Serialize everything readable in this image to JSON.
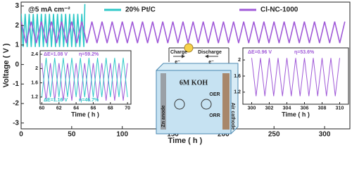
{
  "chart_data": [
    {
      "type": "line",
      "annotation": "@5 mA cm⁻²",
      "xlabel": "Time ( h )",
      "ylabel": "Voltage ( V )",
      "xlim": [
        0,
        325
      ],
      "xticks": [
        0,
        50,
        100,
        150,
        200,
        250,
        300
      ],
      "ylim": [
        -3.3,
        3.2
      ],
      "yticks": [
        -3,
        -2,
        -1,
        0,
        1,
        2,
        3
      ],
      "legend": "top",
      "series": [
        {
          "name": "20% Pt/C",
          "color": "#2ec8c8",
          "x": [
            0,
            2,
            4,
            6,
            8,
            10,
            12,
            14,
            16,
            18,
            20,
            22,
            24,
            26,
            28,
            30,
            32,
            34,
            36,
            38,
            40,
            42,
            44,
            46,
            48,
            50,
            52,
            54,
            56,
            58,
            60,
            62,
            63
          ],
          "values": [
            2.6,
            0.9,
            2.6,
            0.9,
            2.6,
            0.9,
            2.6,
            0.9,
            2.6,
            0.9,
            2.6,
            0.9,
            2.6,
            0.9,
            2.6,
            0.9,
            2.6,
            0.9,
            2.6,
            0.9,
            2.6,
            0.9,
            2.6,
            0.9,
            2.6,
            0.9,
            2.6,
            0.9,
            2.6,
            0.9,
            2.6,
            0.9,
            3.1
          ]
        },
        {
          "name": "Cl-NC-1000",
          "color": "#a05ad8",
          "x": [
            0,
            5,
            10,
            15,
            20,
            25,
            30,
            35,
            40,
            45,
            50,
            55,
            60,
            65,
            70,
            75,
            80,
            85,
            90,
            95,
            100,
            105,
            110,
            115,
            120,
            125,
            130,
            135,
            140,
            145,
            150,
            155,
            160,
            165,
            170,
            175,
            180,
            185,
            190,
            195,
            200,
            205,
            210,
            215,
            220,
            225,
            230,
            235,
            240,
            245,
            250,
            255,
            260,
            265,
            270,
            275,
            280,
            285,
            290,
            295,
            300,
            305,
            310,
            315,
            320
          ],
          "values": [
            2.2,
            1.1,
            2.2,
            1.1,
            2.2,
            1.1,
            2.2,
            1.1,
            2.2,
            1.1,
            2.2,
            1.1,
            2.2,
            1.1,
            2.2,
            1.1,
            2.2,
            1.1,
            2.2,
            1.1,
            2.2,
            1.1,
            2.2,
            1.1,
            2.2,
            1.1,
            2.2,
            1.1,
            2.2,
            1.1,
            2.2,
            1.1,
            2.2,
            1.1,
            2.2,
            1.1,
            2.2,
            1.1,
            2.2,
            1.1,
            2.2,
            1.1,
            2.2,
            1.1,
            2.2,
            1.1,
            2.2,
            1.1,
            2.2,
            1.1,
            2.2,
            1.1,
            2.2,
            1.1,
            2.2,
            1.1,
            2.2,
            1.1,
            2.2,
            1.1,
            2.2,
            1.1,
            2.2,
            1.1,
            2.2
          ]
        }
      ]
    },
    {
      "type": "line",
      "xlabel": "Time ( h )",
      "xlim": [
        59.8,
        70.4
      ],
      "xticks": [
        60,
        62,
        64,
        66,
        68,
        70
      ],
      "ylim": [
        1.0,
        2.5
      ],
      "yticks": [
        1.2,
        1.6,
        2.0,
        2.4
      ],
      "annotations": [
        "ΔE=1.08 V",
        "η=59.2%",
        "ΔE=1.16 V",
        "η=46.7%"
      ],
      "series": [
        {
          "color": "#a05ad8",
          "x": [
            60,
            60.5,
            61,
            61.5,
            62,
            62.5,
            63,
            63.5,
            64,
            64.5,
            65,
            65.5,
            66,
            66.5,
            67,
            67.5,
            68,
            68.5,
            69,
            69.5,
            70
          ],
          "values": [
            2.15,
            1.1,
            2.15,
            1.1,
            2.15,
            1.1,
            2.15,
            1.1,
            2.15,
            1.1,
            2.15,
            1.1,
            2.15,
            1.1,
            2.15,
            1.1,
            2.15,
            1.1,
            2.15,
            1.1,
            2.15
          ]
        },
        {
          "color": "#2ec8c8",
          "x": [
            60,
            60.5,
            61,
            61.5,
            62,
            62.5,
            63,
            63.5,
            64,
            64.5,
            65,
            65.5,
            66,
            66.5,
            67,
            67.5,
            68,
            68.5,
            69,
            69.5,
            70
          ],
          "values": [
            1.2,
            2.3,
            1.2,
            2.3,
            1.2,
            2.3,
            1.2,
            2.3,
            1.2,
            2.3,
            1.2,
            2.3,
            1.2,
            2.3,
            1.2,
            2.3,
            1.2,
            2.3,
            1.2,
            2.3,
            1.2
          ]
        }
      ]
    },
    {
      "type": "line",
      "xlabel": "Time ( h )",
      "xlim": [
        299,
        311
      ],
      "xticks": [
        300,
        302,
        304,
        306,
        308,
        310
      ],
      "ylim": [
        0.9,
        2.3
      ],
      "yticks": [
        1.2,
        1.6,
        2.0
      ],
      "annotations": [
        "ΔE=0.96 V",
        "η=53.6%"
      ],
      "series": [
        {
          "color": "#a05ad8",
          "x": [
            300,
            300.5,
            301,
            301.5,
            302,
            302.5,
            303,
            303.5,
            304,
            304.5,
            305,
            305.5,
            306,
            306.5,
            307,
            307.5,
            308,
            308.5,
            309,
            309.5,
            310
          ],
          "values": [
            2.05,
            1.1,
            2.05,
            1.1,
            2.05,
            1.1,
            2.05,
            1.1,
            2.05,
            1.1,
            2.05,
            1.1,
            2.05,
            1.1,
            2.05,
            1.1,
            2.05,
            1.1,
            2.05,
            1.1,
            2.05
          ]
        }
      ]
    }
  ],
  "schematic": {
    "charge": "Charge",
    "discharge": "Discharge",
    "electron_left": "e⁻",
    "electron_right": "e⁻",
    "electrolyte": "6M KOH",
    "anode": "Zn anode",
    "cathode": "Air cathode",
    "oer": "OER",
    "orr": "ORR"
  }
}
